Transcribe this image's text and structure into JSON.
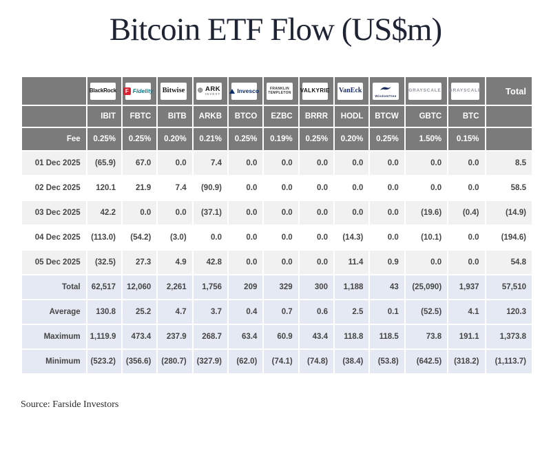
{
  "title": "Bitcoin ETF Flow (US$m)",
  "source": "Source: Farside Investors",
  "colors": {
    "header_bg": "#7b7b7b",
    "negative_red": "#e8402d",
    "summary_bg": "#e4e9f4",
    "stripe_gray": "#f1f1f1",
    "title_navy": "#1e2433",
    "fidelity_red": "#d92231"
  },
  "chart_data": {
    "type": "table",
    "title": "Bitcoin ETF Flow (US$m)",
    "total_header": "Total",
    "fee_label": "Fee",
    "issuers": [
      {
        "id": "blackrock",
        "label": "BlackRock"
      },
      {
        "id": "fidelity",
        "label": "Fidelity",
        "icon": "fidelity-badge",
        "icon_text": "F"
      },
      {
        "id": "bitwise",
        "label": "Bitwise"
      },
      {
        "id": "ark",
        "label": "ARK",
        "sub": "INVEST",
        "icon": "globe"
      },
      {
        "id": "invesco",
        "label": "Invesco",
        "icon": "triangle"
      },
      {
        "id": "franklin",
        "label": "FRANKLIN",
        "sub": "TEMPLETON"
      },
      {
        "id": "valkyrie",
        "label": "VALKYRIE"
      },
      {
        "id": "vaneck",
        "label": "VanEck"
      },
      {
        "id": "wisdomtree",
        "label": "WisdomTree",
        "icon": "bird"
      },
      {
        "id": "grayscale",
        "label": "GRAYSCALE"
      },
      {
        "id": "grayscale-2",
        "label": "GRAYSCALE"
      }
    ],
    "tickers": [
      "IBIT",
      "FBTC",
      "BITB",
      "ARKB",
      "BTCO",
      "EZBC",
      "BRRR",
      "HODL",
      "BTCW",
      "GBTC",
      "BTC"
    ],
    "fees": [
      "0.25%",
      "0.25%",
      "0.20%",
      "0.21%",
      "0.25%",
      "0.19%",
      "0.25%",
      "0.20%",
      "0.25%",
      "1.50%",
      "0.15%"
    ],
    "rows": [
      {
        "label": "01 Dec 2025",
        "values": [
          "(65.9)",
          "67.0",
          "0.0",
          "7.4",
          "0.0",
          "0.0",
          "0.0",
          "0.0",
          "0.0",
          "0.0",
          "0.0",
          "8.5"
        ]
      },
      {
        "label": "02 Dec 2025",
        "values": [
          "120.1",
          "21.9",
          "7.4",
          "(90.9)",
          "0.0",
          "0.0",
          "0.0",
          "0.0",
          "0.0",
          "0.0",
          "0.0",
          "58.5"
        ]
      },
      {
        "label": "03 Dec 2025",
        "values": [
          "42.2",
          "0.0",
          "0.0",
          "(37.1)",
          "0.0",
          "0.0",
          "0.0",
          "0.0",
          "0.0",
          "(19.6)",
          "(0.4)",
          "(14.9)"
        ]
      },
      {
        "label": "04 Dec 2025",
        "values": [
          "(113.0)",
          "(54.2)",
          "(3.0)",
          "0.0",
          "0.0",
          "0.0",
          "0.0",
          "(14.3)",
          "0.0",
          "(10.1)",
          "0.0",
          "(194.6)"
        ]
      },
      {
        "label": "05 Dec 2025",
        "values": [
          "(32.5)",
          "27.3",
          "4.9",
          "42.8",
          "0.0",
          "0.0",
          "0.0",
          "11.4",
          "0.9",
          "0.0",
          "0.0",
          "54.8"
        ]
      }
    ],
    "summary": [
      {
        "label": "Total",
        "values": [
          "62,517",
          "12,060",
          "2,261",
          "1,756",
          "209",
          "329",
          "300",
          "1,188",
          "43",
          "(25,090)",
          "1,937",
          "57,510"
        ]
      },
      {
        "label": "Average",
        "values": [
          "130.8",
          "25.2",
          "4.7",
          "3.7",
          "0.4",
          "0.7",
          "0.6",
          "2.5",
          "0.1",
          "(52.5)",
          "4.1",
          "120.3"
        ]
      },
      {
        "label": "Maximum",
        "values": [
          "1,119.9",
          "473.4",
          "237.9",
          "268.7",
          "63.4",
          "60.9",
          "43.4",
          "118.8",
          "118.5",
          "73.8",
          "191.1",
          "1,373.8"
        ]
      },
      {
        "label": "Minimum",
        "values": [
          "(523.2)",
          "(356.6)",
          "(280.7)",
          "(327.9)",
          "(62.0)",
          "(74.1)",
          "(74.8)",
          "(38.4)",
          "(53.8)",
          "(642.5)",
          "(318.2)",
          "(1,113.7)"
        ]
      }
    ]
  }
}
